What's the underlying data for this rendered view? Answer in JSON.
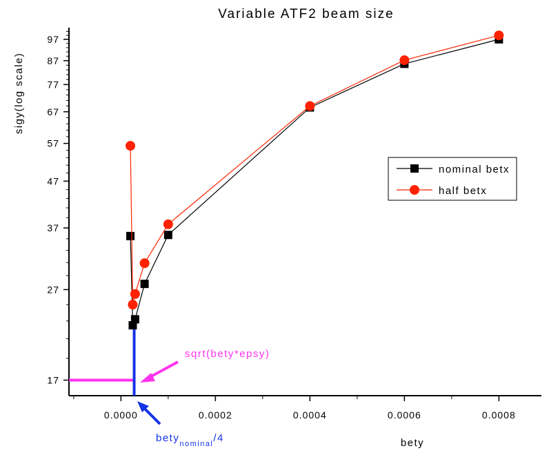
{
  "chart_data": {
    "type": "line",
    "title": "Variable ATF2 beam size",
    "xlabel": "bety",
    "ylabel": "sigy(log scale)",
    "y_scale": "log",
    "xlim": [
      -0.00011,
      0.00089
    ],
    "ylim": [
      15.7,
      103
    ],
    "x_ticks": [
      0.0,
      0.0002,
      0.0004,
      0.0006,
      0.0008
    ],
    "x_tick_labels": [
      "0.0000",
      "0.0002",
      "0.0004",
      "0.0006",
      "0.0008"
    ],
    "y_ticks": [
      17,
      27,
      37,
      47,
      57,
      67,
      77,
      87,
      97
    ],
    "y_tick_labels": [
      "17",
      "27",
      "37",
      "47",
      "57",
      "67",
      "77",
      "87",
      "97"
    ],
    "legend_position": "right",
    "series": [
      {
        "name": "nominal betx",
        "color": "#000000",
        "marker": "square",
        "x": [
          2e-05,
          2.5e-05,
          3e-05,
          5e-05,
          0.0001,
          0.0004,
          0.0006,
          0.0008
        ],
        "y": [
          35.5,
          22.5,
          23.2,
          27.8,
          35.7,
          68.5,
          85.6,
          97.0
        ]
      },
      {
        "name": "half betx",
        "color": "#ff2200",
        "marker": "circle",
        "x": [
          2e-05,
          2.5e-05,
          3e-05,
          5e-05,
          0.0001,
          0.0004,
          0.0006,
          0.0008
        ],
        "y": [
          56.3,
          25.0,
          26.4,
          30.9,
          37.7,
          69.0,
          87.2,
          99.0
        ]
      }
    ],
    "annotations": [
      {
        "text": "sqrt(bety*epsy)",
        "color": "#ff33ee"
      },
      {
        "text_main": "bety",
        "text_sub": "nominal",
        "text_suffix": "/4",
        "color": "#1433e6"
      }
    ],
    "reference_lines": [
      {
        "kind": "horizontal",
        "y": 17,
        "x_end": 2.5e-05,
        "color": "#ff33ee"
      },
      {
        "kind": "vertical",
        "x": 2.8e-05,
        "y_end": 22.5,
        "color": "#1433e6"
      }
    ]
  }
}
